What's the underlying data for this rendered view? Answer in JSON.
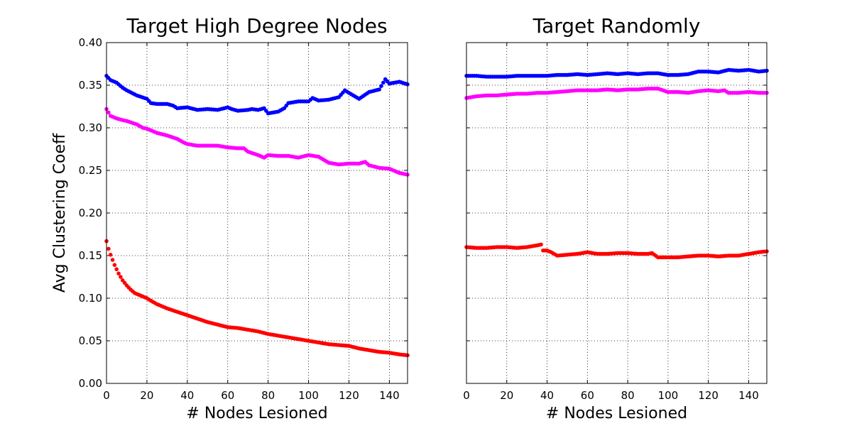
{
  "chart_data": [
    {
      "type": "scatter",
      "title": "Target High Degree Nodes",
      "xlabel": "# Nodes Lesioned",
      "ylabel": "Avg Clustering Coeff",
      "xlim": [
        0,
        149
      ],
      "ylim": [
        0.0,
        0.4
      ],
      "xticks": [
        "0",
        "20",
        "40",
        "60",
        "80",
        "100",
        "120",
        "140"
      ],
      "yticks": [
        "0.00",
        "0.05",
        "0.10",
        "0.15",
        "0.20",
        "0.25",
        "0.30",
        "0.35",
        "0.40"
      ],
      "grid": true,
      "series": [
        {
          "color": "#0000ff",
          "x": [
            0,
            2,
            5,
            8,
            10,
            15,
            20,
            22,
            25,
            30,
            33,
            35,
            40,
            45,
            50,
            55,
            60,
            62,
            65,
            70,
            72,
            75,
            78,
            80,
            85,
            88,
            90,
            95,
            100,
            102,
            105,
            110,
            115,
            118,
            120,
            125,
            130,
            135,
            138,
            140,
            145,
            149
          ],
          "y": [
            0.361,
            0.356,
            0.353,
            0.347,
            0.344,
            0.338,
            0.334,
            0.329,
            0.328,
            0.328,
            0.326,
            0.323,
            0.324,
            0.321,
            0.322,
            0.321,
            0.324,
            0.322,
            0.32,
            0.321,
            0.322,
            0.321,
            0.323,
            0.317,
            0.319,
            0.323,
            0.329,
            0.331,
            0.331,
            0.335,
            0.332,
            0.333,
            0.336,
            0.344,
            0.341,
            0.334,
            0.342,
            0.345,
            0.357,
            0.352,
            0.354,
            0.351
          ]
        },
        {
          "color": "#ff00ff",
          "x": [
            0,
            2,
            5,
            8,
            10,
            15,
            18,
            20,
            25,
            30,
            35,
            38,
            40,
            45,
            50,
            55,
            60,
            65,
            68,
            70,
            75,
            78,
            80,
            85,
            90,
            95,
            100,
            105,
            110,
            115,
            120,
            125,
            128,
            130,
            135,
            140,
            145,
            149
          ],
          "y": [
            0.322,
            0.314,
            0.311,
            0.309,
            0.308,
            0.304,
            0.3,
            0.299,
            0.294,
            0.291,
            0.287,
            0.283,
            0.281,
            0.279,
            0.279,
            0.279,
            0.277,
            0.276,
            0.276,
            0.272,
            0.268,
            0.265,
            0.268,
            0.267,
            0.267,
            0.265,
            0.268,
            0.266,
            0.259,
            0.257,
            0.258,
            0.258,
            0.26,
            0.256,
            0.253,
            0.252,
            0.247,
            0.245
          ]
        },
        {
          "color": "#ff0000",
          "x": [
            0,
            1,
            2,
            3,
            4,
            5,
            6,
            7,
            8,
            9,
            10,
            12,
            14,
            16,
            18,
            20,
            22,
            25,
            28,
            30,
            35,
            40,
            45,
            50,
            55,
            60,
            65,
            70,
            75,
            80,
            85,
            90,
            95,
            100,
            105,
            110,
            115,
            120,
            125,
            130,
            135,
            140,
            145,
            149
          ],
          "y": [
            0.167,
            0.158,
            0.151,
            0.145,
            0.139,
            0.134,
            0.129,
            0.125,
            0.121,
            0.118,
            0.115,
            0.11,
            0.106,
            0.104,
            0.102,
            0.1,
            0.097,
            0.093,
            0.09,
            0.088,
            0.084,
            0.08,
            0.076,
            0.072,
            0.069,
            0.066,
            0.065,
            0.063,
            0.061,
            0.058,
            0.056,
            0.054,
            0.052,
            0.05,
            0.048,
            0.046,
            0.045,
            0.044,
            0.041,
            0.039,
            0.037,
            0.036,
            0.034,
            0.033
          ]
        }
      ]
    },
    {
      "type": "scatter",
      "title": "Target Randomly",
      "xlabel": "# Nodes Lesioned",
      "ylabel": "",
      "xlim": [
        0,
        149
      ],
      "ylim": [
        0.0,
        0.4
      ],
      "xticks": [
        "0",
        "20",
        "40",
        "60",
        "80",
        "100",
        "120",
        "140"
      ],
      "yticks": [],
      "grid": true,
      "series": [
        {
          "color": "#0000ff",
          "x": [
            0,
            5,
            10,
            15,
            20,
            25,
            30,
            35,
            40,
            45,
            50,
            55,
            60,
            65,
            70,
            75,
            80,
            85,
            90,
            95,
            100,
            105,
            110,
            115,
            120,
            125,
            130,
            135,
            140,
            145,
            149
          ],
          "y": [
            0.361,
            0.361,
            0.36,
            0.36,
            0.36,
            0.361,
            0.361,
            0.361,
            0.361,
            0.362,
            0.362,
            0.363,
            0.362,
            0.363,
            0.364,
            0.363,
            0.364,
            0.363,
            0.364,
            0.364,
            0.362,
            0.362,
            0.363,
            0.366,
            0.366,
            0.365,
            0.368,
            0.367,
            0.368,
            0.366,
            0.367
          ]
        },
        {
          "color": "#ff00ff",
          "x": [
            0,
            5,
            10,
            15,
            20,
            25,
            30,
            35,
            40,
            45,
            50,
            55,
            60,
            65,
            70,
            75,
            80,
            85,
            90,
            95,
            100,
            105,
            110,
            115,
            120,
            125,
            128,
            130,
            135,
            140,
            145,
            149
          ],
          "y": [
            0.335,
            0.337,
            0.338,
            0.338,
            0.339,
            0.34,
            0.34,
            0.341,
            0.341,
            0.342,
            0.343,
            0.344,
            0.344,
            0.344,
            0.345,
            0.344,
            0.345,
            0.345,
            0.346,
            0.346,
            0.342,
            0.342,
            0.341,
            0.343,
            0.344,
            0.343,
            0.344,
            0.341,
            0.341,
            0.342,
            0.341,
            0.341
          ]
        },
        {
          "color": "#ff0000",
          "x": [
            0,
            5,
            10,
            15,
            20,
            25,
            30,
            35,
            37,
            38,
            40,
            42,
            45,
            50,
            55,
            60,
            65,
            70,
            75,
            80,
            85,
            90,
            92,
            95,
            100,
            105,
            110,
            115,
            120,
            125,
            130,
            135,
            140,
            145,
            149
          ],
          "y": [
            0.16,
            0.159,
            0.159,
            0.16,
            0.16,
            0.159,
            0.16,
            0.162,
            0.163,
            0.156,
            0.156,
            0.154,
            0.15,
            0.151,
            0.152,
            0.154,
            0.152,
            0.152,
            0.153,
            0.153,
            0.152,
            0.152,
            0.153,
            0.148,
            0.148,
            0.148,
            0.149,
            0.15,
            0.15,
            0.149,
            0.15,
            0.15,
            0.152,
            0.154,
            0.155
          ]
        }
      ]
    }
  ]
}
